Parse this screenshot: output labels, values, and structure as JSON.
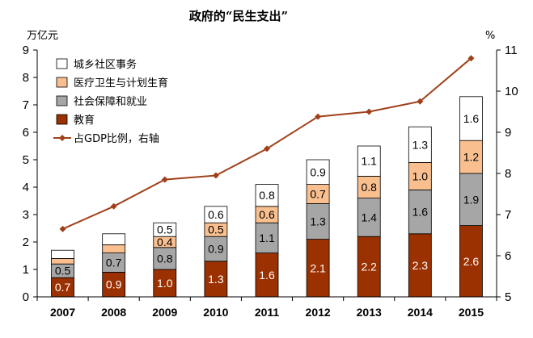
{
  "chart_data": {
    "type": "bar",
    "title": "政府的“民生支出”",
    "left_unit": "万亿元",
    "right_unit": "%",
    "categories": [
      "2007",
      "2008",
      "2009",
      "2010",
      "2011",
      "2012",
      "2013",
      "2014",
      "2015"
    ],
    "series": [
      {
        "name": "教育",
        "kind": "stacked-bar",
        "axis": "left",
        "color": "#9B3000",
        "values": [
          0.7,
          0.9,
          1.0,
          1.3,
          1.6,
          2.1,
          2.2,
          2.3,
          2.6
        ],
        "labels": [
          "0.7",
          "0.9",
          "1.0",
          "1.3",
          "1.6",
          "2.1",
          "2.2",
          "2.3",
          "2.6"
        ]
      },
      {
        "name": "社会保障和就业",
        "kind": "stacked-bar",
        "axis": "left",
        "color": "#A6A6A6",
        "values": [
          0.5,
          0.7,
          0.8,
          0.9,
          1.1,
          1.3,
          1.4,
          1.6,
          1.9
        ],
        "labels": [
          "0.5",
          "0.7",
          "0.8",
          "0.9",
          "1.1",
          "1.3",
          "1.4",
          "1.6",
          "1.9"
        ]
      },
      {
        "name": "医疗卫生与计划生育",
        "kind": "stacked-bar",
        "axis": "left",
        "color": "#F9BF8F",
        "values": [
          0.2,
          0.3,
          0.4,
          0.5,
          0.6,
          0.7,
          0.8,
          1.0,
          1.2
        ],
        "labels": [
          "",
          "",
          "0.4",
          "0.5",
          "0.6",
          "0.7",
          "0.8",
          "1.0",
          "1.2"
        ]
      },
      {
        "name": "城乡社区事务",
        "kind": "stacked-bar",
        "axis": "left",
        "color": "#FFFFFF",
        "values": [
          0.3,
          0.4,
          0.5,
          0.6,
          0.8,
          0.9,
          1.1,
          1.3,
          1.6
        ],
        "labels": [
          "",
          "",
          "0.5",
          "0.6",
          "0.8",
          "0.9",
          "1.1",
          "1.3",
          "1.6"
        ]
      },
      {
        "name": "占GDP比例，右轴",
        "kind": "line",
        "axis": "right",
        "color": "#A0401A",
        "values": [
          6.65,
          7.2,
          7.85,
          7.95,
          8.6,
          9.38,
          9.5,
          9.75,
          10.8
        ]
      }
    ],
    "ylim_left": [
      0,
      9
    ],
    "yticks_left": [
      0,
      1,
      2,
      3,
      4,
      5,
      6,
      7,
      8,
      9
    ],
    "ylim_right": [
      5,
      11
    ],
    "yticks_right": [
      5,
      6,
      7,
      8,
      9,
      10,
      11
    ],
    "legend": [
      "城乡社区事务",
      "医疗卫生与计划生育",
      "社会保障和就业",
      "教育",
      "占GDP比例，右轴"
    ],
    "legend_position": "top-left",
    "grid": false
  }
}
